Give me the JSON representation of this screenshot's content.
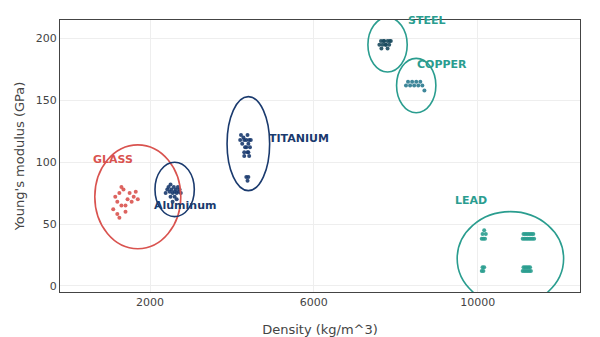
{
  "chart_data": {
    "type": "scatter",
    "xlabel": "Density (kg/m^3)",
    "ylabel": "Young's modulus (GPa)",
    "xlim": [
      -200,
      12500
    ],
    "ylim": [
      -5,
      215
    ],
    "xticks": [
      2000,
      6000,
      10000
    ],
    "yticks": [
      0,
      50,
      100,
      150,
      200
    ],
    "grid": true,
    "series": [
      {
        "name": "GLASS",
        "color": "#d9534f",
        "label": {
          "x": 550,
          "y": 95,
          "color": "#d9534f"
        },
        "ellipse": {
          "cx": 1700,
          "cy": 72,
          "rx": 1050,
          "ry": 42,
          "color": "#d9534f"
        },
        "points": [
          [
            1150,
            72
          ],
          [
            1200,
            68
          ],
          [
            1250,
            75
          ],
          [
            1300,
            80
          ],
          [
            1350,
            78
          ],
          [
            1400,
            65
          ],
          [
            1450,
            70
          ],
          [
            1500,
            75
          ],
          [
            1550,
            68
          ],
          [
            1600,
            72
          ],
          [
            1650,
            76
          ],
          [
            1700,
            70
          ],
          [
            1100,
            62
          ],
          [
            1200,
            58
          ],
          [
            1300,
            65
          ],
          [
            1400,
            60
          ],
          [
            1250,
            55
          ]
        ]
      },
      {
        "name": "Aluminum",
        "color": "#1a3a6e",
        "label": {
          "x": 2050,
          "y": 58,
          "color": "#1a3a6e"
        },
        "ellipse": {
          "cx": 2600,
          "cy": 78,
          "rx": 480,
          "ry": 22,
          "color": "#1a3a6e"
        },
        "points": [
          [
            2380,
            75
          ],
          [
            2420,
            78
          ],
          [
            2450,
            80
          ],
          [
            2480,
            76
          ],
          [
            2500,
            82
          ],
          [
            2520,
            78
          ],
          [
            2550,
            75
          ],
          [
            2580,
            80
          ],
          [
            2600,
            76
          ],
          [
            2630,
            78
          ],
          [
            2650,
            75
          ],
          [
            2680,
            80
          ],
          [
            2700,
            76
          ],
          [
            2720,
            78
          ],
          [
            2750,
            75
          ],
          [
            2500,
            72
          ],
          [
            2550,
            68
          ],
          [
            2600,
            72
          ],
          [
            2650,
            70
          ]
        ]
      },
      {
        "name": "TITANIUM",
        "color": "#1a3a6e",
        "label": {
          "x": 4850,
          "y": 112,
          "color": "#1a3a6e"
        },
        "ellipse": {
          "cx": 4400,
          "cy": 115,
          "rx": 520,
          "ry": 38,
          "color": "#1a3a6e"
        },
        "points": [
          [
            4200,
            118
          ],
          [
            4220,
            122
          ],
          [
            4250,
            115
          ],
          [
            4280,
            120
          ],
          [
            4300,
            118
          ],
          [
            4320,
            112
          ],
          [
            4350,
            118
          ],
          [
            4380,
            122
          ],
          [
            4400,
            115
          ],
          [
            4420,
            118
          ],
          [
            4440,
            112
          ],
          [
            4460,
            118
          ],
          [
            4300,
            108
          ],
          [
            4350,
            112
          ],
          [
            4400,
            108
          ],
          [
            4420,
            105
          ],
          [
            4380,
            108
          ],
          [
            4300,
            105
          ],
          [
            4350,
            88
          ],
          [
            4380,
            85
          ],
          [
            4400,
            88
          ]
        ]
      },
      {
        "name": "STEEL",
        "color": "#1a4a5e",
        "label": {
          "x": 8250,
          "y": 208,
          "color": "#2a9d8f"
        },
        "ellipse": {
          "cx": 7800,
          "cy": 195,
          "rx": 480,
          "ry": 22,
          "color": "#2a9d8f"
        },
        "points": [
          [
            7600,
            195
          ],
          [
            7640,
            198
          ],
          [
            7680,
            195
          ],
          [
            7720,
            198
          ],
          [
            7760,
            195
          ],
          [
            7800,
            198
          ],
          [
            7840,
            195
          ],
          [
            7880,
            198
          ],
          [
            7650,
            192
          ],
          [
            7700,
            198
          ],
          [
            7750,
            195
          ],
          [
            7800,
            192
          ],
          [
            7850,
            198
          ]
        ]
      },
      {
        "name": "COPPER",
        "color": "#2a7a8f",
        "label": {
          "x": 8480,
          "y": 172,
          "color": "#2a9d8f"
        },
        "ellipse": {
          "cx": 8500,
          "cy": 162,
          "rx": 480,
          "ry": 22,
          "color": "#2a9d8f"
        },
        "points": [
          [
            8250,
            162
          ],
          [
            8300,
            165
          ],
          [
            8350,
            162
          ],
          [
            8400,
            165
          ],
          [
            8450,
            162
          ],
          [
            8500,
            165
          ],
          [
            8550,
            162
          ],
          [
            8600,
            165
          ],
          [
            8650,
            162
          ],
          [
            8700,
            158
          ]
        ]
      },
      {
        "name": "LEAD",
        "color": "#2a9d8f",
        "label": {
          "x": 9400,
          "y": 62,
          "color": "#2a9d8f"
        },
        "ellipse": {
          "cx": 10800,
          "cy": 22,
          "rx": 1300,
          "ry": 38,
          "color": "#2a9d8f"
        },
        "points": [
          [
            10100,
            38
          ],
          [
            10120,
            42
          ],
          [
            10140,
            38
          ],
          [
            10160,
            45
          ],
          [
            10180,
            38
          ],
          [
            10200,
            42
          ],
          [
            11100,
            38
          ],
          [
            11120,
            42
          ],
          [
            11140,
            38
          ],
          [
            11160,
            42
          ],
          [
            11180,
            38
          ],
          [
            11200,
            42
          ],
          [
            11220,
            38
          ],
          [
            11240,
            42
          ],
          [
            11260,
            38
          ],
          [
            11280,
            42
          ],
          [
            11300,
            38
          ],
          [
            11320,
            42
          ],
          [
            11340,
            38
          ],
          [
            11360,
            42
          ],
          [
            11380,
            38
          ],
          [
            11100,
            12
          ],
          [
            11120,
            15
          ],
          [
            11140,
            12
          ],
          [
            11160,
            15
          ],
          [
            11180,
            12
          ],
          [
            11200,
            15
          ],
          [
            11220,
            12
          ],
          [
            11240,
            15
          ],
          [
            11260,
            12
          ],
          [
            11280,
            15
          ],
          [
            11300,
            12
          ],
          [
            10100,
            12
          ],
          [
            10120,
            15
          ],
          [
            10140,
            12
          ],
          [
            10160,
            15
          ]
        ]
      }
    ]
  }
}
